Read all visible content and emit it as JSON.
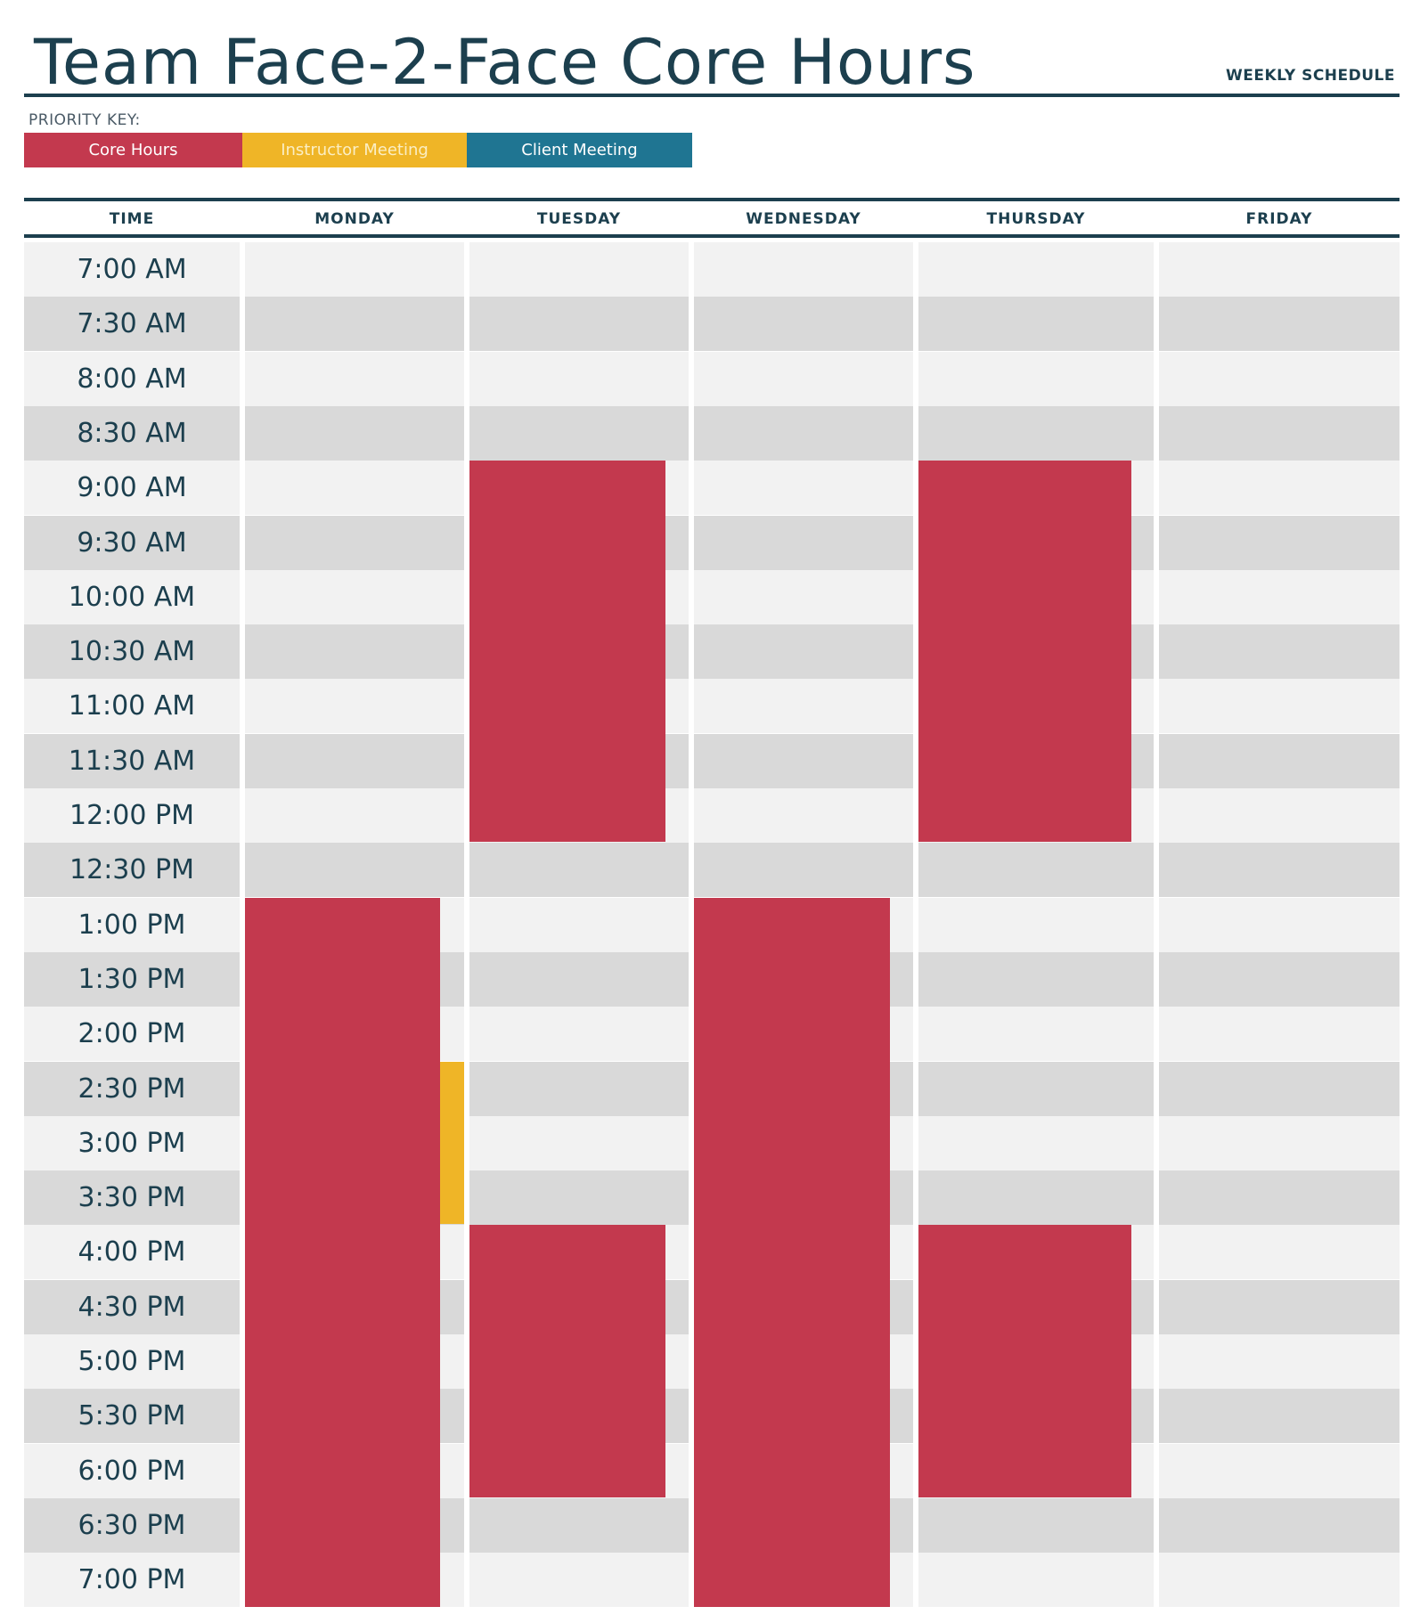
{
  "header": {
    "title": "Team Face-2-Face Core Hours",
    "subtitle": "WEEKLY SCHEDULE"
  },
  "priority_key": {
    "label": "PRIORITY KEY:",
    "items": [
      {
        "label": "Core Hours",
        "color": "#c3394e"
      },
      {
        "label": "Instructor Meeting",
        "color": "#efb527"
      },
      {
        "label": "Client Meeting",
        "color": "#1f7592"
      }
    ]
  },
  "columns": [
    "TIME",
    "MONDAY",
    "TUESDAY",
    "WEDNESDAY",
    "THURSDAY",
    "FRIDAY"
  ],
  "times": [
    "7:00 AM",
    "7:30 AM",
    "8:00 AM",
    "8:30 AM",
    "9:00 AM",
    "9:30 AM",
    "10:00 AM",
    "10:30 AM",
    "11:00 AM",
    "11:30 AM",
    "12:00 PM",
    "12:30 PM",
    "1:00 PM",
    "1:30 PM",
    "2:00 PM",
    "2:30 PM",
    "3:00 PM",
    "3:30 PM",
    "4:00 PM",
    "4:30 PM",
    "5:00 PM",
    "5:30 PM",
    "6:00 PM",
    "6:30 PM",
    "7:00 PM"
  ],
  "events": [
    {
      "day": "TUESDAY",
      "type": "Core Hours",
      "start": "9:00 AM",
      "end": "12:30 PM"
    },
    {
      "day": "THURSDAY",
      "type": "Core Hours",
      "start": "9:00 AM",
      "end": "12:30 PM"
    },
    {
      "day": "MONDAY",
      "type": "Core Hours",
      "start": "1:00 PM",
      "end": "7:30 PM"
    },
    {
      "day": "MONDAY",
      "type": "Instructor Meeting",
      "start": "2:30 PM",
      "end": "4:00 PM"
    },
    {
      "day": "WEDNESDAY",
      "type": "Core Hours",
      "start": "1:00 PM",
      "end": "7:30 PM"
    },
    {
      "day": "TUESDAY",
      "type": "Core Hours",
      "start": "4:00 PM",
      "end": "6:30 PM"
    },
    {
      "day": "THURSDAY",
      "type": "Core Hours",
      "start": "4:00 PM",
      "end": "6:30 PM"
    }
  ]
}
